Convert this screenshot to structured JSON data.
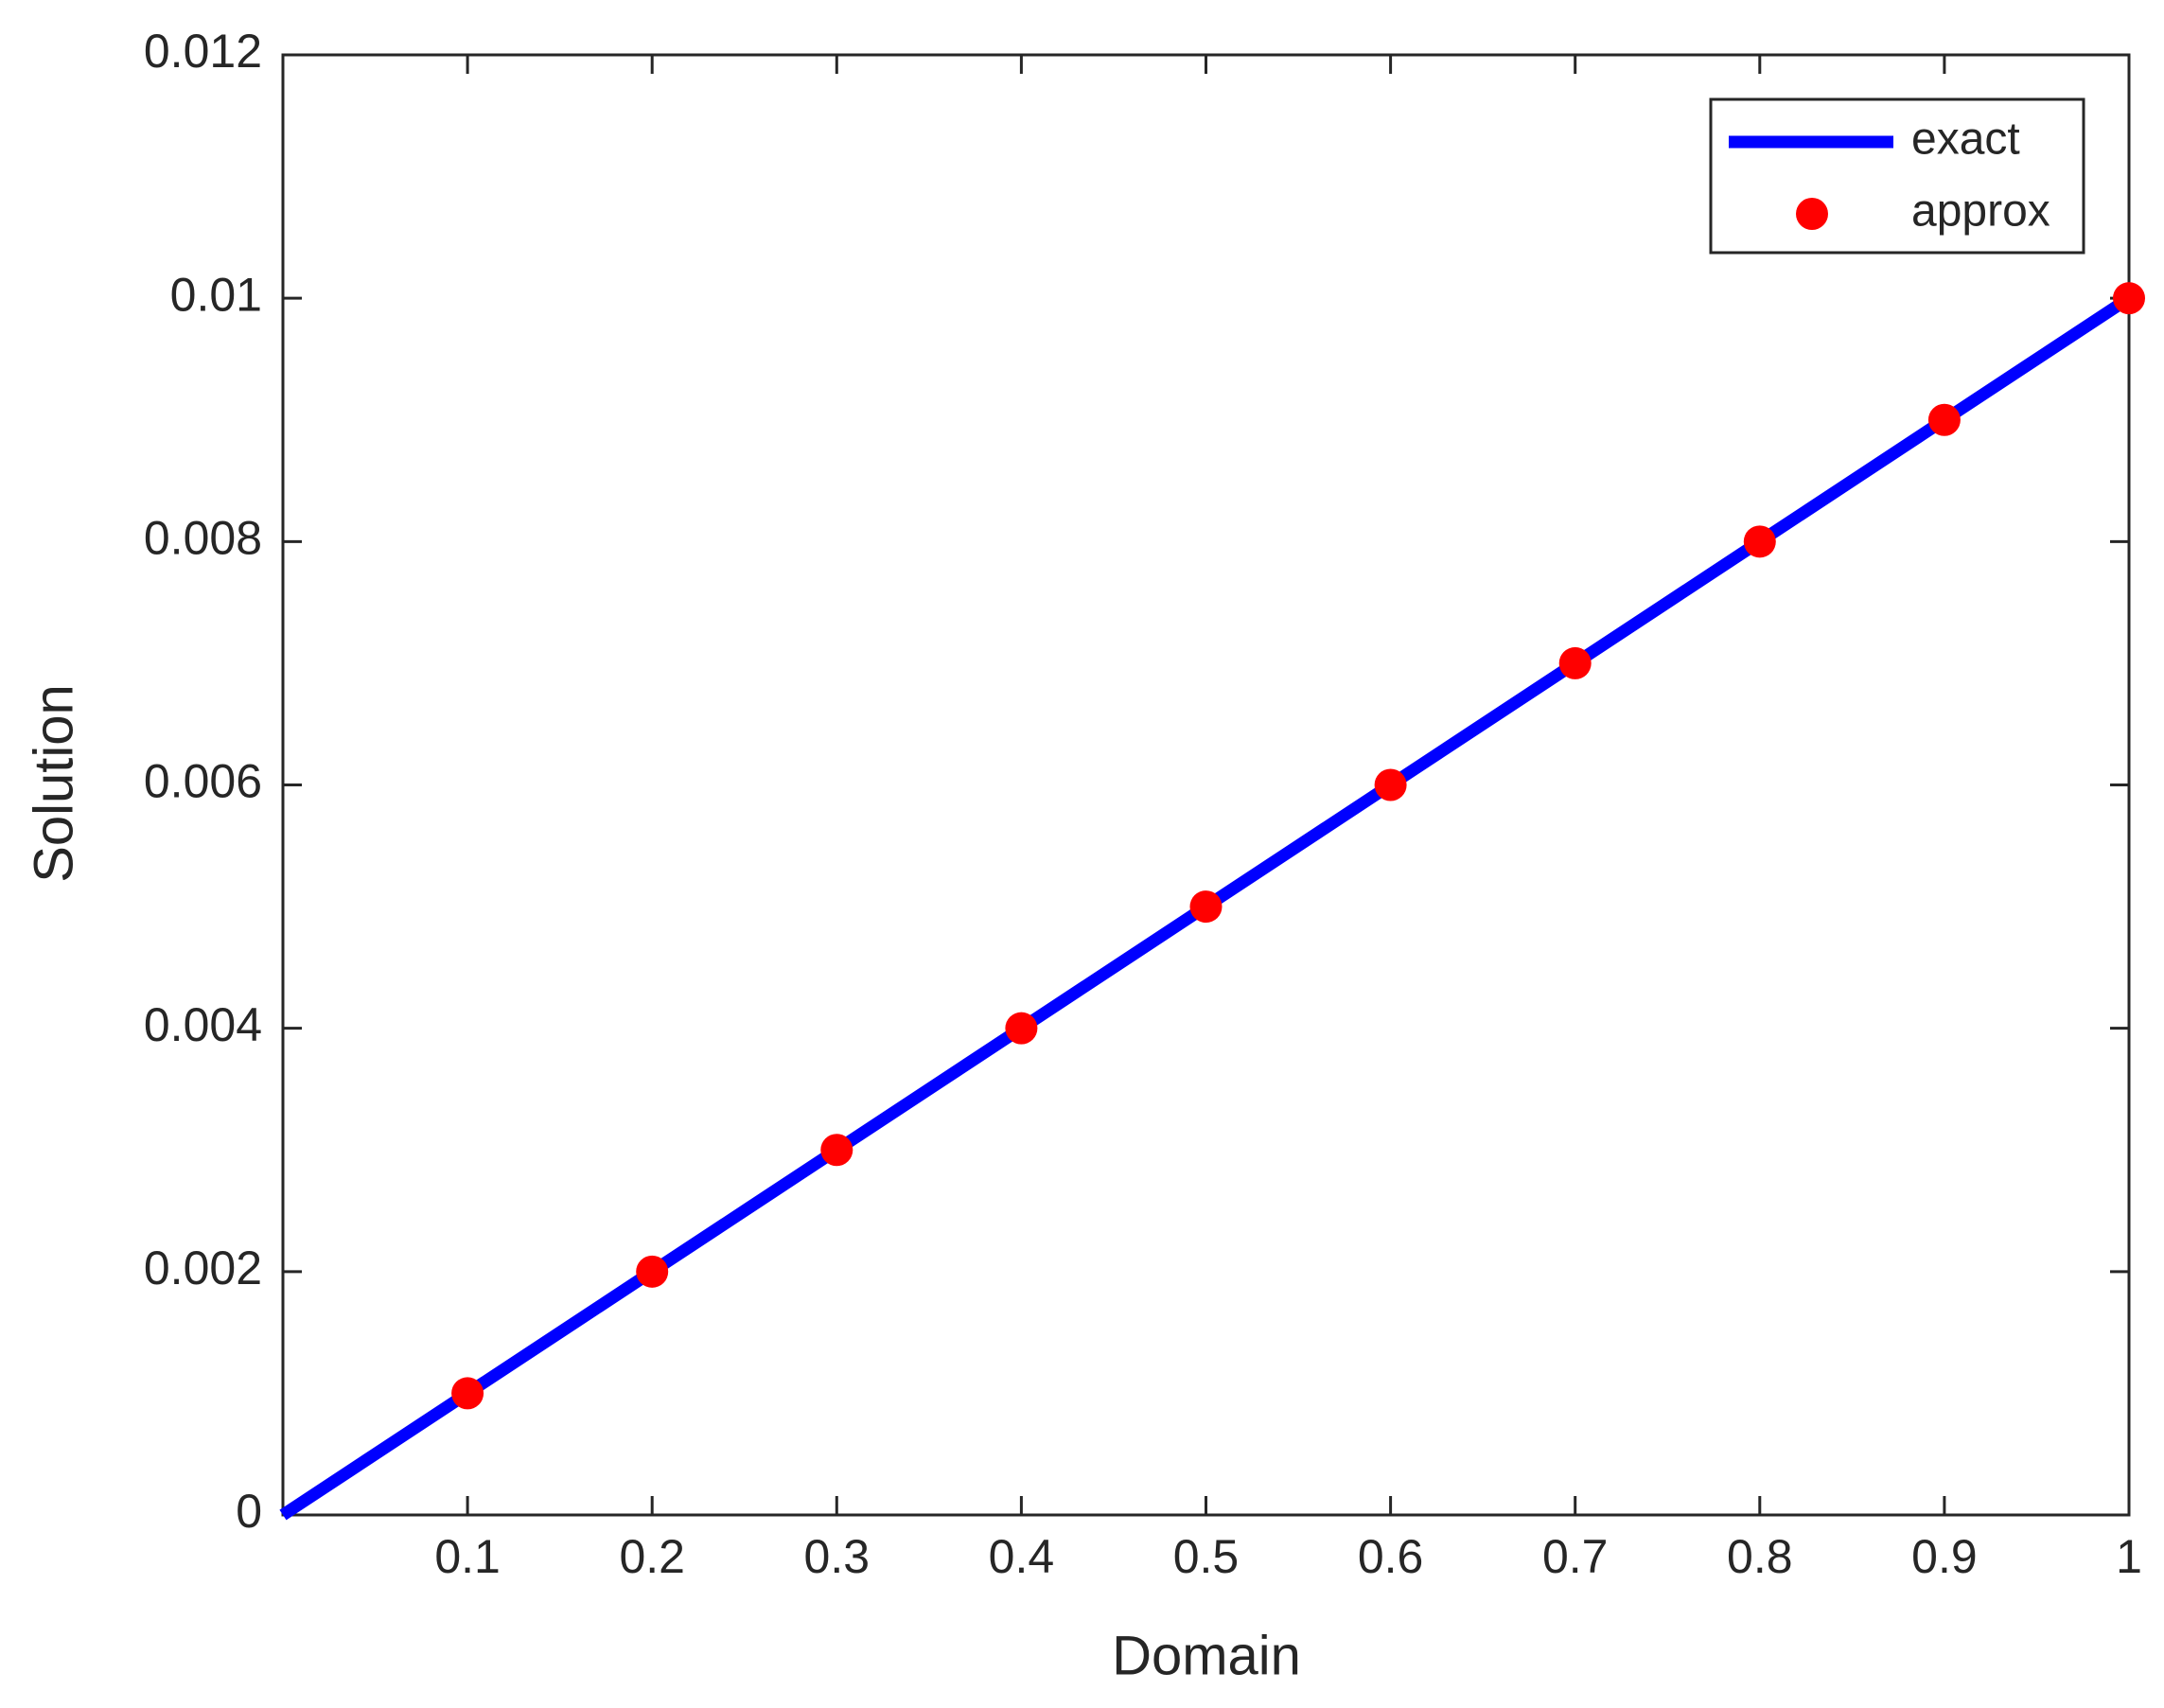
{
  "chart_data": {
    "type": "line",
    "xlabel": "Domain",
    "ylabel": "Solution",
    "xlim": [
      0,
      1
    ],
    "xticks": [
      0.1,
      0.2,
      0.3,
      0.4,
      0.5,
      0.6,
      0.7,
      0.8,
      0.9,
      1
    ],
    "ylim": [
      0,
      0.012
    ],
    "yticks": [
      0,
      0.002,
      0.004,
      0.006,
      0.008,
      0.01,
      0.012
    ],
    "grid": false,
    "legend": "top-right",
    "series": [
      {
        "name": "exact",
        "color": "#0000ff",
        "style": "line",
        "x": [
          0,
          0.1,
          0.2,
          0.3,
          0.4,
          0.5,
          0.6,
          0.7,
          0.8,
          0.9,
          1
        ],
        "values": [
          0,
          0.001,
          0.002,
          0.003,
          0.004,
          0.005,
          0.006,
          0.007,
          0.008,
          0.009,
          0.01
        ]
      },
      {
        "name": "approx",
        "color": "#ff0000",
        "style": "marker",
        "x": [
          0.1,
          0.2,
          0.3,
          0.4,
          0.5,
          0.6,
          0.7,
          0.8,
          0.9,
          1
        ],
        "values": [
          0.001,
          0.002,
          0.003,
          0.004,
          0.005,
          0.006,
          0.007,
          0.008,
          0.009,
          0.01
        ]
      }
    ]
  }
}
